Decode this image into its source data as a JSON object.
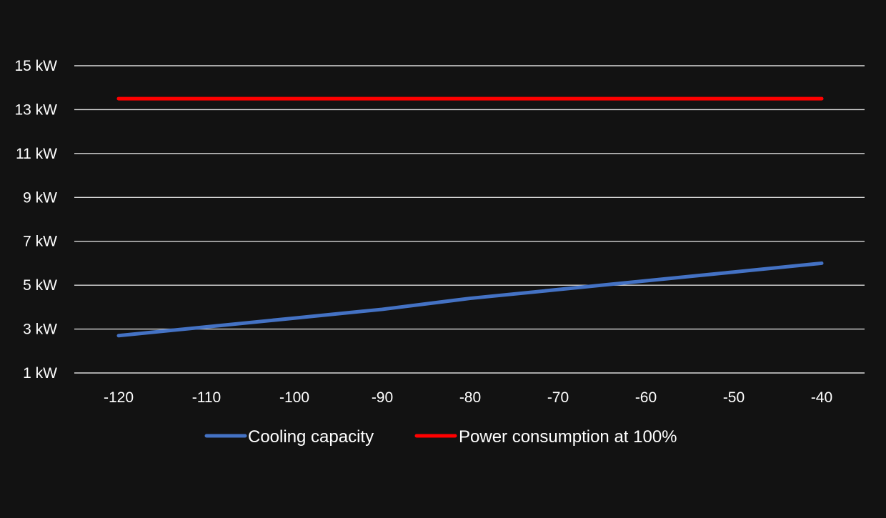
{
  "chart_data": {
    "type": "line",
    "title": "",
    "xlabel": "",
    "ylabel": "",
    "x": [
      -120,
      -110,
      -100,
      -90,
      -80,
      -70,
      -60,
      -50,
      -40
    ],
    "xticks": [
      "-120",
      "-110",
      "-100",
      "-90",
      "-80",
      "-70",
      "-60",
      "-50",
      "-40"
    ],
    "yticks": [
      {
        "value": 1,
        "label": "1 kW"
      },
      {
        "value": 3,
        "label": "3 kW"
      },
      {
        "value": 5,
        "label": "5 kW"
      },
      {
        "value": 7,
        "label": "7 kW"
      },
      {
        "value": 9,
        "label": "9 kW"
      },
      {
        "value": 11,
        "label": "11 kW"
      },
      {
        "value": 13,
        "label": "13 kW"
      },
      {
        "value": 15,
        "label": "15 kW"
      }
    ],
    "ylim": [
      1,
      15
    ],
    "grid": true,
    "legend_position": "bottom",
    "series": [
      {
        "name": "Cooling capacity",
        "color": "#4472c4",
        "values": [
          2.7,
          3.1,
          3.5,
          3.9,
          4.4,
          4.8,
          5.2,
          5.6,
          6.0
        ]
      },
      {
        "name": "Power consumption at 100%",
        "color": "#ff0000",
        "values": [
          13.5,
          13.5,
          13.5,
          13.5,
          13.5,
          13.5,
          13.5,
          13.5,
          13.5
        ]
      }
    ]
  },
  "colors": {
    "background": "#121212",
    "gridline": "#d9d9d9",
    "text": "#ffffff"
  }
}
